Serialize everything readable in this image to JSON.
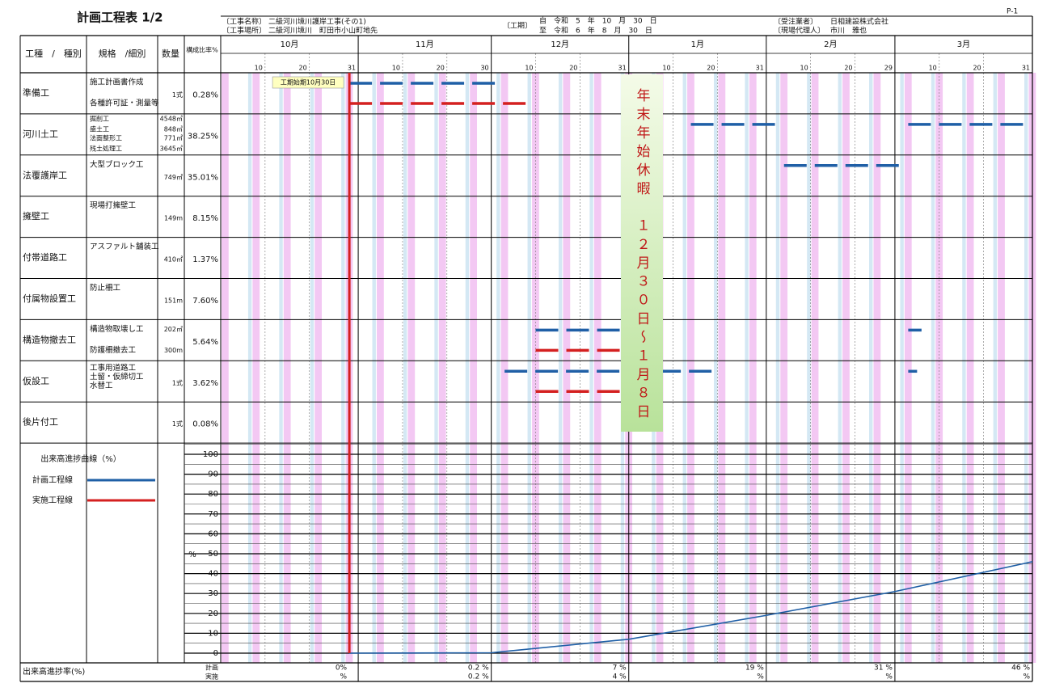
{
  "header": {
    "title": "計画工程表 1/2",
    "page": "P-1",
    "project_label": "〔工事名称〕",
    "project": "二級河川境川護岸工事(その1)",
    "site_label": "〔工事場所〕",
    "site": "二級河川境川　町田市小山町地先",
    "period_label": "〔工期〕",
    "period_from": "自　令和　5　年　10　月　30　日",
    "period_to": "至　令和　6　年　8　月　30　日",
    "client_label": "〔受注業者〕",
    "client": "日相建設株式会社",
    "agent_label": "〔現場代理人〕",
    "agent": "市川　雅也"
  },
  "columns": {
    "type": "工種　/　種別",
    "spec": "規格　/細別",
    "qty": "数量",
    "ratio": "構成比率%"
  },
  "months": [
    {
      "label": "10月",
      "days": 31,
      "ticks": [
        10,
        20,
        31
      ]
    },
    {
      "label": "11月",
      "days": 30,
      "ticks": [
        10,
        20,
        30
      ]
    },
    {
      "label": "12月",
      "days": 31,
      "ticks": [
        10,
        20,
        31
      ]
    },
    {
      "label": "1月",
      "days": 31,
      "ticks": [
        10,
        20,
        31
      ]
    },
    {
      "label": "2月",
      "days": 29,
      "ticks": [
        10,
        20,
        29
      ]
    },
    {
      "label": "3月",
      "days": 31,
      "ticks": [
        10,
        20,
        31
      ]
    }
  ],
  "tasks": [
    {
      "name": "準備工",
      "items": [
        {
          "spec": "施工計画書作成"
        },
        {
          "spec": "各種許可証・測量等"
        }
      ],
      "qty": "1式",
      "ratio": "0.28%",
      "plan": [
        [
          29,
          62
        ]
      ],
      "actual": [
        [
          29,
          69
        ]
      ]
    },
    {
      "name": "河川土工",
      "items": [
        {
          "spec": "掘削工",
          "qty": "4548㎥"
        },
        {
          "spec": "盛土工",
          "qty": "848㎥"
        },
        {
          "spec": "法面整形工",
          "qty": "771㎡"
        },
        {
          "spec": "残土処理工",
          "qty": "3645㎥"
        }
      ],
      "ratio": "38.25%",
      "plan": [
        [
          106,
          125
        ],
        [
          155,
          181
        ]
      ],
      "actual": []
    },
    {
      "name": "法覆護岸工",
      "items": [
        {
          "spec": "大型ブロック工"
        }
      ],
      "qty": "749㎡",
      "ratio": "35.01%",
      "plan": [
        [
          127,
          153
        ]
      ],
      "actual": []
    },
    {
      "name": "擁壁工",
      "items": [
        {
          "spec": "現場打擁壁工"
        }
      ],
      "qty": "149m",
      "ratio": "8.15%",
      "plan": [],
      "actual": []
    },
    {
      "name": "付帯道路工",
      "items": [
        {
          "spec": "アスファルト舗装工"
        }
      ],
      "qty": "410㎡",
      "ratio": "1.37%",
      "plan": [],
      "actual": []
    },
    {
      "name": "付属物設置工",
      "items": [
        {
          "spec": "防止柵工"
        }
      ],
      "qty": "151m",
      "ratio": "7.60%",
      "plan": [],
      "actual": []
    },
    {
      "name": "構造物撤去工",
      "items": [
        {
          "spec": "構造物取壊し工",
          "qty": "202㎥"
        },
        {
          "spec": "防護柵撤去工",
          "qty": "300m"
        }
      ],
      "ratio": "5.64%",
      "plan": [
        [
          71,
          90
        ],
        [
          155,
          158
        ]
      ],
      "actual": [
        [
          71,
          90
        ]
      ]
    },
    {
      "name": "仮設工",
      "items": [
        {
          "spec": "工事用道路工"
        },
        {
          "spec": "土留・仮締切工"
        },
        {
          "spec": "水替工"
        }
      ],
      "qty": "1式",
      "ratio": "3.62%",
      "plan": [
        [
          64,
          111
        ],
        [
          155,
          157
        ]
      ],
      "actual": [
        [
          71,
          90
        ]
      ]
    },
    {
      "name": "後片付工",
      "items": [],
      "qty": "1式",
      "ratio": "0.08%",
      "plan": [],
      "actual": []
    }
  ],
  "milestone": {
    "label": "工期始期10月30日",
    "day": 29
  },
  "holiday": {
    "text": "年末年始休暇　１２月３０日～１月８日"
  },
  "progress": {
    "title": "出来高進捗曲線（%）",
    "legend": [
      {
        "name": "計画工程線",
        "color": "#1f5fa6"
      },
      {
        "name": "実施工程線",
        "color": "#d42020"
      }
    ],
    "axis_label": "%",
    "ylim": [
      0,
      100
    ],
    "yticks": [
      0,
      10,
      20,
      30,
      40,
      50,
      60,
      70,
      80,
      90,
      100
    ],
    "days": [
      29,
      61,
      92,
      123,
      152,
      183
    ],
    "plan": [
      0,
      0.2,
      7,
      19,
      31,
      46
    ],
    "row_label": "出来高進捗率(%)",
    "plan_row_label": "計画",
    "actual_row_label": "実施",
    "plan_labels": [
      "0%",
      "0.2 %",
      "7 %",
      "19 %",
      "31 %",
      "46 %"
    ],
    "actual_labels": [
      "%",
      "0.2 %",
      "4 %",
      "%",
      "%",
      "%"
    ]
  }
}
